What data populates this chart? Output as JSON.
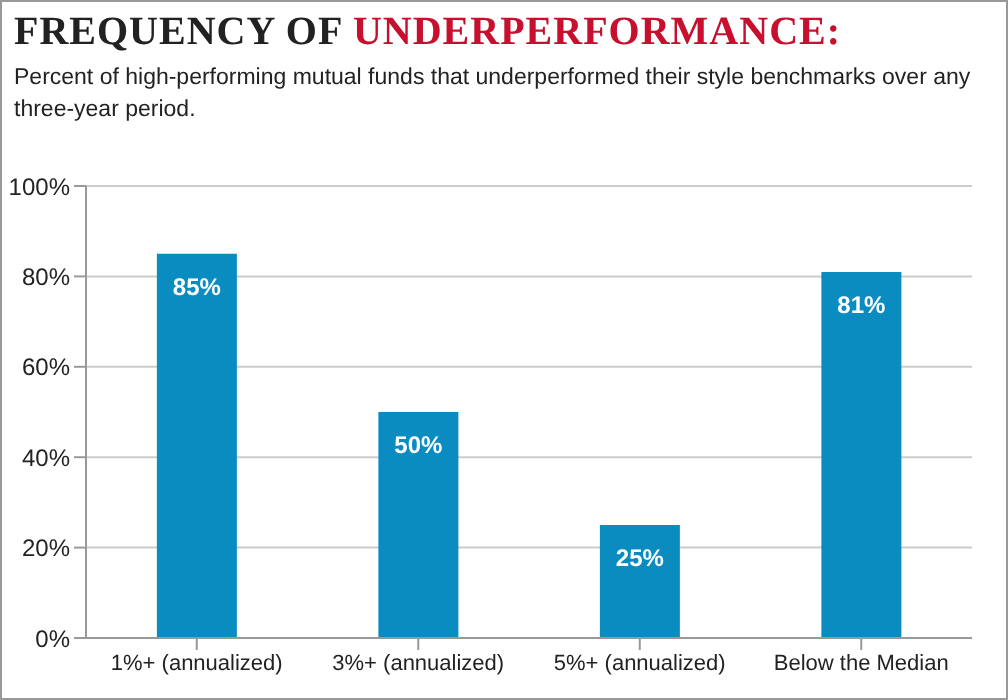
{
  "chart_data": {
    "type": "bar",
    "title": "FREQUENCY OF UNDERPERFORMANCE:",
    "subtitle": "Percent of high-performing mutual funds that underperformed their style benchmarks over any three-year period.",
    "categories": [
      "1%+ (annualized)",
      "3%+ (annualized)",
      "5%+ (annualized)",
      "Below the Median"
    ],
    "values": [
      85,
      50,
      25,
      81
    ],
    "color": "#0a8cc0",
    "value_labels": [
      "85%",
      "50%",
      "25%",
      "81%"
    ],
    "ylim": [
      0,
      100
    ],
    "yticks": [
      {
        "value": 0,
        "label": "0%"
      },
      {
        "value": 20,
        "label": "20%"
      },
      {
        "value": 40,
        "label": "40%"
      },
      {
        "value": 60,
        "label": "60%"
      },
      {
        "value": 80,
        "label": "80%"
      },
      {
        "value": 100,
        "label": "100%"
      }
    ],
    "grid": "y"
  }
}
